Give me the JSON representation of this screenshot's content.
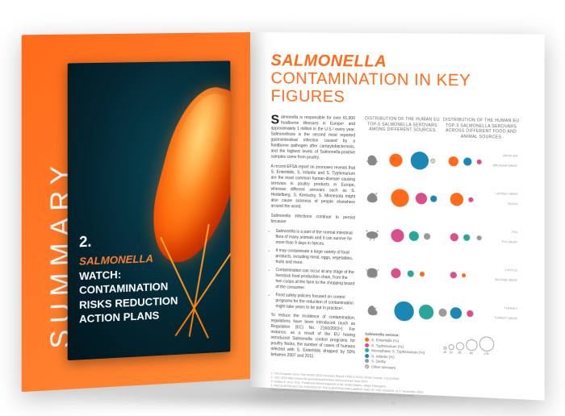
{
  "spine_label": "SUMMARY",
  "left_page": {
    "chapter_number": "2.",
    "title_lines": [
      "SALMONELLA",
      "WATCH:",
      "CONTAMINATION",
      "RISKS REDUCTION",
      "ACTION PLANS"
    ]
  },
  "right_page": {
    "heading_salmonella": "SALMONELLA",
    "heading_rest": " CONTAMINATION IN KEY FIGURES",
    "body": {
      "p1": "almonella is responsible for over 91,000 foodborne illnesses in Europe¹ and approximately 1 million in the U.S.² every year. Salmonellosis is the second most reported gastrointestinal infection caused by a foodborne pathogen after campylobacteriosis, and the highest levels of Salmonella-positive samples come from poultry.",
      "p2": "A recent EFSA report on zoonoses reveals that S. Enteritidis, S. Infantis and S. Typhimurium are the most common human-disease causing serovars in poultry products in Europe, whereas different serovars such as S. Heidelberg, S. Kentucky, S. Minnesota might also cause sickness of people elsewhere around the world.",
      "p3": "Salmonella infections continue to persist because:",
      "bullets": [
        "Salmonella is a part of the normal intestinal flora of many animals and it can survive for more than 9 days in faeces.",
        "It may contaminate a large variety of food products, including meat, eggs, vegetables, fruits and more.",
        "Contamination can occur at any stage of the livestock food production chain, from the hen coops at the farm to the chopping board of the consumer.",
        "Food safety policies focused on control programs for the reduction of contamination might take years to be put in practice³."
      ],
      "p4": "To reduce the incidence of contamination, regulations have been introduced (such as Regulation (EC) No. 2160/2003⁴). For instance, as a result of the EU having introduced Salmonella control programs for poultry flocks, the number of cases of humans infected with S. Enteritidis dropped by 50% between 2007 and 2011."
    },
    "charts": {
      "left_title": "DISTRIBUTION OF\nTHE HUMAN EU TOP-5\nSALMONELLA SEROVARS\nAMONG DIFFERENT\nSOURCES",
      "right_title": "DISTRIBUTION OF\nTHE HUMAN EU TOP-5\nSALMONELLA SEROVARS\nACROSS DIFFERENT FOOD\nAND ANIMAL SOURCES",
      "serovar_colors": {
        "enteritidis": "#ff6b1a",
        "typhimurium": "#d94f8c",
        "monophasic": "#2aa59a",
        "infantis": "#1a87b5",
        "derby": "#9b9b9b"
      },
      "rows": [
        {
          "animal": "broiler",
          "left": [
            {
              "c": "enteritidis",
              "s": 16,
              "x": 8
            },
            {
              "c": "infantis",
              "s": 22,
              "x": 34
            },
            {
              "c": "typhimurium",
              "s": 6,
              "x": 58,
              "hatch": true
            }
          ],
          "right": [
            {
              "c": "enteritidis",
              "s": 12,
              "x": 6
            },
            {
              "c": "infantis",
              "s": 10,
              "x": 24
            },
            {
              "c": "typhimurium",
              "s": 6,
              "x": 40
            }
          ],
          "rlabels": [
            "BROILER",
            "BROILER MEAT"
          ]
        },
        {
          "animal": "layer",
          "left": [
            {
              "c": "enteritidis",
              "s": 22,
              "x": 10
            },
            {
              "c": "typhimurium",
              "s": 14,
              "x": 40
            },
            {
              "c": "infantis",
              "s": 8,
              "x": 58
            }
          ],
          "right": [
            {
              "c": "enteritidis",
              "s": 16,
              "x": 8
            },
            {
              "c": "typhimurium",
              "s": 6,
              "x": 30
            }
          ],
          "rlabels": [
            "LAYING HENS",
            "EGGS"
          ]
        },
        {
          "animal": "pig",
          "left": [
            {
              "c": "typhimurium",
              "s": 16,
              "x": 10
            },
            {
              "c": "monophasic",
              "s": 12,
              "x": 32
            },
            {
              "c": "derby",
              "s": 8,
              "x": 50
            }
          ],
          "right": [
            {
              "c": "typhimurium",
              "s": 10,
              "x": 8
            },
            {
              "c": "monophasic",
              "s": 8,
              "x": 24
            },
            {
              "c": "derby",
              "s": 6,
              "x": 40
            }
          ],
          "rlabels": [
            "PIG",
            "PIG MEAT"
          ]
        },
        {
          "animal": "cattle",
          "left": [
            {
              "c": "typhimurium",
              "s": 12,
              "x": 10
            },
            {
              "c": "monophasic",
              "s": 8,
              "x": 30
            },
            {
              "c": "enteritidis",
              "s": 6,
              "x": 45
            }
          ],
          "right": [
            {
              "c": "typhimurium",
              "s": 8,
              "x": 8
            },
            {
              "c": "enteritidis",
              "s": 5,
              "x": 22
            }
          ],
          "rlabels": [
            "CATTLE",
            "BOVINE MEAT"
          ]
        },
        {
          "animal": "turkey",
          "left": [
            {
              "c": "infantis",
              "s": 24,
              "x": 14
            },
            {
              "c": "monophasic",
              "s": 18,
              "x": 44
            },
            {
              "c": "derby",
              "s": 10,
              "x": 68
            }
          ],
          "right": [
            {
              "c": "infantis",
              "s": 14,
              "x": 8
            },
            {
              "c": "typhimurium",
              "s": 8,
              "x": 28
            }
          ],
          "rlabels": [
            "TURKEY",
            "TURKEY MEAT"
          ]
        }
      ],
      "legend_title": "Salmonella serovar:",
      "legend_items": [
        {
          "c": "enteritidis",
          "l": "S. Enteritidis (%)"
        },
        {
          "c": "typhimurium",
          "l": "S. Typhimurium (%)"
        },
        {
          "c": "monophasic",
          "l": "Monophasic S. Typhimurium (%)"
        },
        {
          "c": "infantis",
          "l": "S. Infantis (%)"
        },
        {
          "c": "derby",
          "l": "S. Derby"
        },
        {
          "hatch": true,
          "l": "Other serovars"
        }
      ],
      "size_legend": [
        {
          "s": 4,
          "v": "≤5"
        },
        {
          "s": 7,
          "v": "10"
        },
        {
          "s": 10,
          "v": "25"
        },
        {
          "s": 14,
          "v": "50"
        },
        {
          "s": 18,
          "v": "≥75"
        }
      ]
    },
    "footnotes": [
      "1. The European Union One Health 2018 Zoonoses Report EFSA & ECDC EFSA Journal, 17(12):5926.",
      "2. CDC 2019 https://www.cdc.gov/salmonella/index.html Accessed June 2020.",
      "3. Scallan E. et al. 2011. Foodborne Illness Acquired in the United States—Major Pathogens.",
      "4. REGULATION (EC) No 2160/2003 OF THE EUROPEAN PARLIAMENT AND OF THE COUNCIL of 17 November 2003.",
      "Reproduced from: The European Union One Health 2018 Zoonoses Report EFSA and ECDC, EFSA Journal 2019."
    ],
    "page_number": "02"
  }
}
